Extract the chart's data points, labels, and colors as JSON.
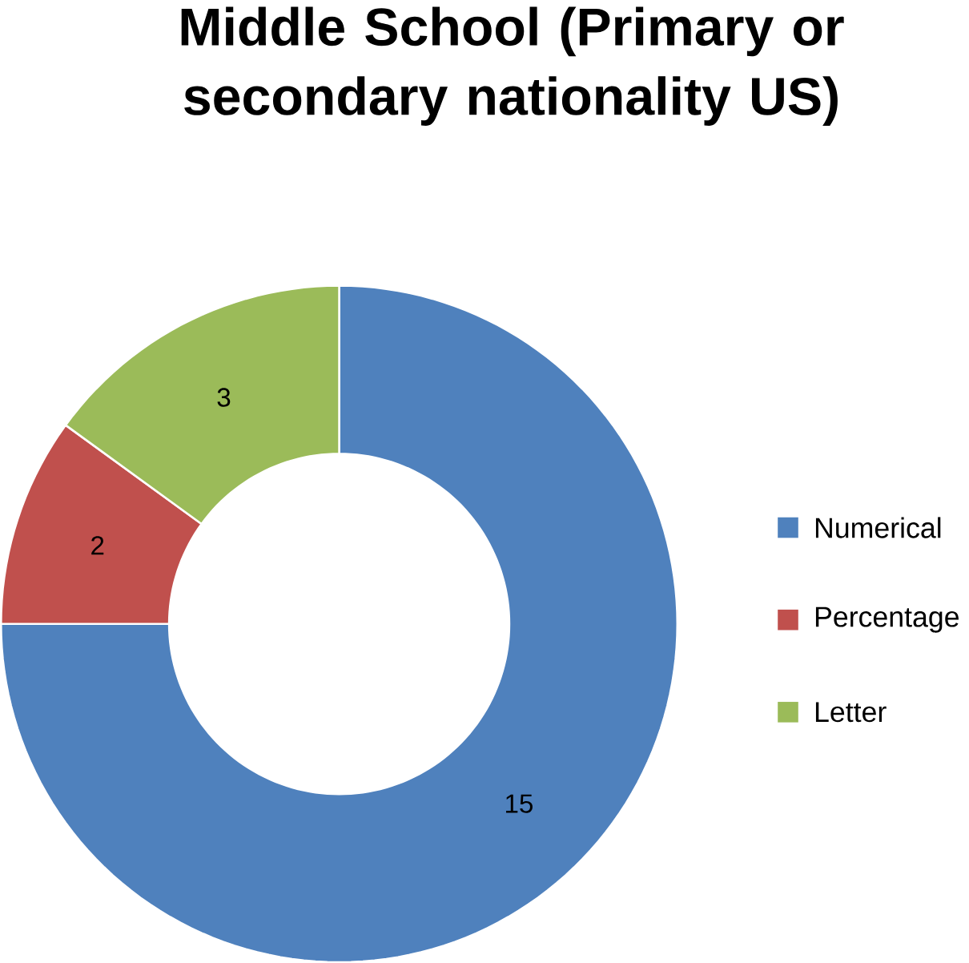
{
  "chart_data": {
    "type": "donut",
    "title": "Middle School (Primary or secondary nationality  US)",
    "categories": [
      "Numerical",
      "Percentage",
      "Letter"
    ],
    "values": [
      15,
      2,
      3
    ],
    "colors": [
      "#4f81bd",
      "#c0504d",
      "#9bbb59"
    ],
    "data_labels": true,
    "legend": "right"
  }
}
